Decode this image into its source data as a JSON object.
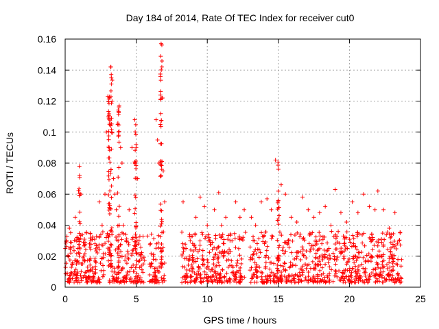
{
  "chart_data": {
    "type": "scatter",
    "title": "Day 184 of 2014, Rate Of TEC Index for receiver cut0",
    "xlabel": "GPS time / hours",
    "ylabel": "ROTI / TECUs",
    "xlim": [
      0,
      25
    ],
    "ylim": [
      0,
      0.16
    ],
    "xticks": [
      0,
      5,
      10,
      15,
      20,
      25
    ],
    "xtick_labels": [
      "0",
      "5",
      "10",
      "15",
      "20",
      "25"
    ],
    "yticks": [
      0,
      0.02,
      0.04,
      0.06,
      0.08,
      0.1,
      0.12,
      0.14,
      0.16
    ],
    "ytick_labels": [
      "0",
      "0.02",
      "0.04",
      "0.06",
      "0.08",
      "0.1",
      "0.12",
      "0.14",
      "0.16"
    ],
    "grid": true,
    "marker": "+",
    "marker_color": "#ff0000",
    "series": [
      {
        "name": "ROTI",
        "description_points": "dense scatter; selected representative points",
        "x": [
          0.1,
          0.2,
          0.3,
          0.5,
          0.7,
          0.9,
          1.0,
          1.1,
          1.3,
          1.5,
          1.8,
          2.1,
          2.4,
          2.6,
          2.8,
          2.9,
          3.0,
          3.05,
          3.1,
          3.2,
          3.25,
          3.3,
          3.4,
          3.5,
          3.6,
          3.7,
          3.8,
          3.9,
          4.0,
          4.1,
          4.3,
          4.5,
          4.7,
          4.9,
          5.0,
          5.1,
          5.2,
          5.3,
          5.5,
          5.8,
          6.0,
          6.2,
          6.4,
          6.5,
          6.6,
          6.7,
          6.75,
          6.8,
          6.85,
          6.9,
          7.0,
          8.3,
          8.5,
          8.8,
          9.2,
          9.5,
          9.8,
          10.0,
          10.2,
          10.5,
          10.8,
          11.0,
          11.3,
          11.6,
          12.0,
          12.3,
          12.6,
          13.1,
          13.4,
          13.8,
          14.2,
          14.5,
          14.8,
          15.0,
          15.2,
          15.5,
          15.9,
          16.3,
          16.7,
          17.1,
          17.5,
          17.9,
          18.3,
          18.7,
          19.0,
          19.4,
          19.8,
          20.2,
          20.6,
          21.0,
          21.4,
          21.8,
          22.0,
          22.4,
          22.8,
          23.2,
          23.5
        ],
        "y": [
          0.03,
          0.02,
          0.038,
          0.015,
          0.045,
          0.025,
          0.078,
          0.06,
          0.02,
          0.035,
          0.03,
          0.028,
          0.055,
          0.04,
          0.06,
          0.1,
          0.123,
          0.11,
          0.09,
          0.142,
          0.135,
          0.12,
          0.07,
          0.06,
          0.05,
          0.105,
          0.117,
          0.09,
          0.08,
          0.04,
          0.03,
          0.05,
          0.09,
          0.108,
          0.09,
          0.07,
          0.03,
          0.02,
          0.015,
          0.033,
          0.028,
          0.02,
          0.108,
          0.095,
          0.08,
          0.105,
          0.157,
          0.142,
          0.122,
          0.075,
          0.055,
          0.055,
          0.025,
          0.03,
          0.045,
          0.058,
          0.052,
          0.04,
          0.03,
          0.05,
          0.061,
          0.04,
          0.045,
          0.03,
          0.055,
          0.045,
          0.05,
          0.045,
          0.04,
          0.055,
          0.057,
          0.05,
          0.082,
          0.076,
          0.066,
          0.06,
          0.045,
          0.042,
          0.058,
          0.05,
          0.045,
          0.048,
          0.052,
          0.04,
          0.063,
          0.048,
          0.042,
          0.055,
          0.048,
          0.06,
          0.052,
          0.05,
          0.062,
          0.05,
          0.038,
          0.048,
          0.03
        ]
      }
    ]
  }
}
